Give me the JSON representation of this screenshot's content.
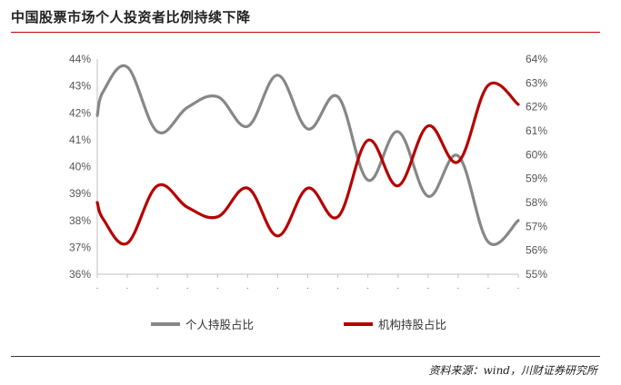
{
  "title": "中国股票市场个人投资者比例持续下降",
  "source": "资料来源：wind，川财证券研究所",
  "colors": {
    "personal": "#878787",
    "institution": "#b50000",
    "title_rule": "#c00000"
  },
  "chart_data": {
    "type": "line",
    "left_axis": {
      "ticks": [
        "44%",
        "43%",
        "42%",
        "41%",
        "40%",
        "39%",
        "38%",
        "37%",
        "36%"
      ],
      "range": [
        36,
        44
      ]
    },
    "right_axis": {
      "ticks": [
        "64%",
        "63%",
        "62%",
        "61%",
        "60%",
        "59%",
        "58%",
        "57%",
        "56%",
        "55%"
      ],
      "range": [
        55,
        64
      ]
    },
    "x_tick_labels": [
      "·",
      "·",
      "·",
      "·",
      "·",
      "·",
      "·",
      "·",
      "·",
      "·",
      "·",
      "·",
      "·",
      "·",
      "·"
    ],
    "series": [
      {
        "name": "个人持股占比",
        "axis": "left",
        "x": [
          0,
          0.2,
          1,
          2,
          3,
          4,
          5,
          6,
          7,
          8,
          9,
          10,
          11,
          12,
          13,
          14
        ],
        "values": [
          41.9,
          42.8,
          43.7,
          41.3,
          42.2,
          42.6,
          41.5,
          43.4,
          41.4,
          42.6,
          39.5,
          41.3,
          38.9,
          40.4,
          37.2,
          38.0
        ]
      },
      {
        "name": "机构持股占比",
        "axis": "right",
        "x": [
          0,
          0.2,
          1,
          2,
          3,
          4,
          5,
          6,
          7,
          8,
          9,
          10,
          11,
          12,
          13,
          14
        ],
        "values": [
          58.0,
          57.3,
          56.3,
          58.7,
          57.8,
          57.4,
          58.6,
          56.6,
          58.6,
          57.4,
          60.6,
          58.7,
          61.2,
          59.7,
          62.9,
          62.1
        ]
      }
    ]
  }
}
